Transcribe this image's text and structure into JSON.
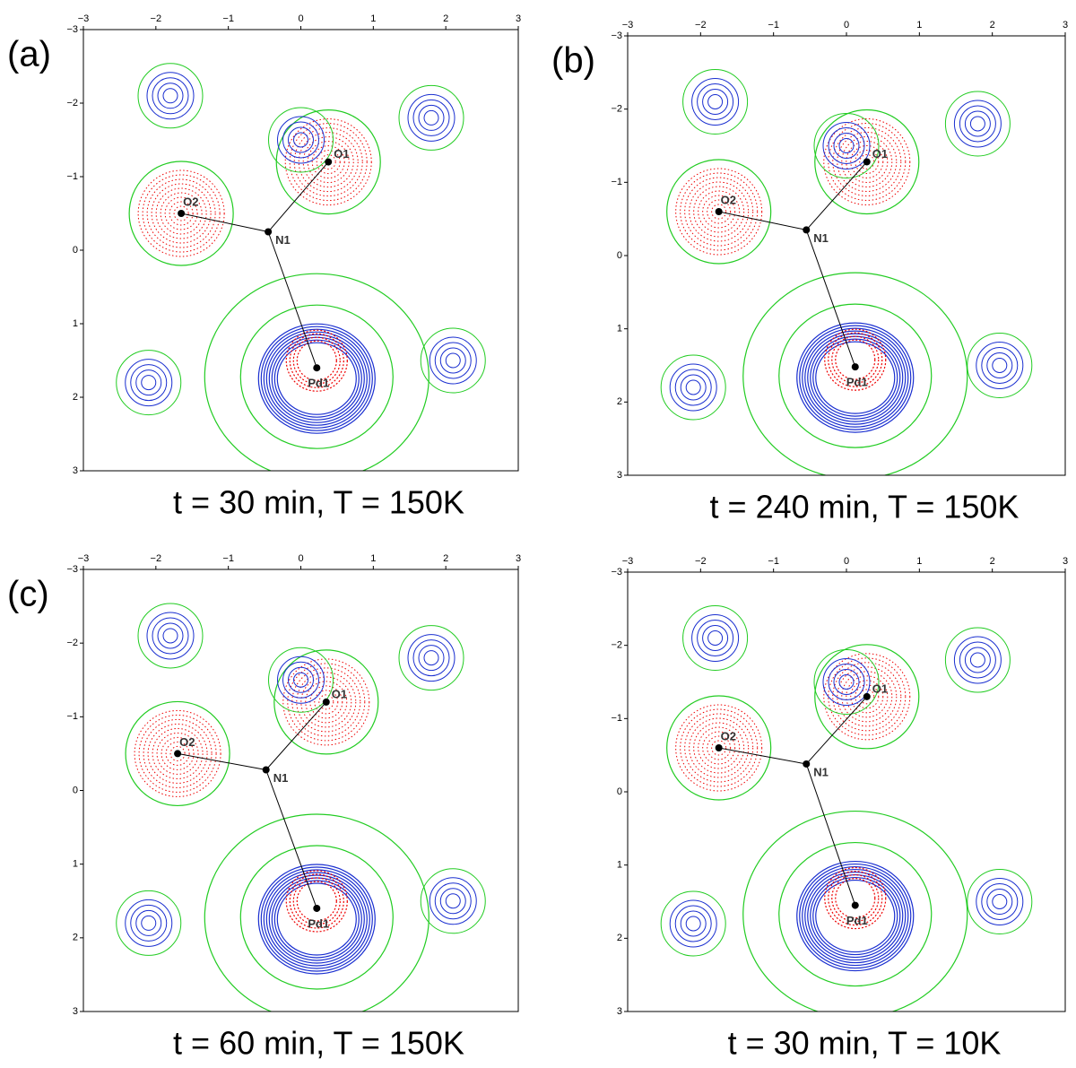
{
  "chart_data": [
    {
      "type": "scatter",
      "panel_label": "(a)",
      "caption": "t = 30 min, T = 150K",
      "labels": [
        "O1",
        "O2",
        "N1",
        "Pd1"
      ],
      "x": [
        0.38,
        -1.65,
        -0.45,
        0.22
      ],
      "y": [
        -1.2,
        -0.5,
        -0.25,
        1.6
      ],
      "xlim": [
        -3,
        3
      ],
      "ylim": [
        -3,
        3
      ],
      "y_inverted": true,
      "xticks": [
        {
          "value": -3,
          "label": "−3"
        },
        {
          "value": -2,
          "label": "−2"
        },
        {
          "value": -1,
          "label": "−1"
        },
        0,
        1,
        2,
        3
      ],
      "yticks": [
        {
          "value": -3,
          "label": "−3"
        },
        {
          "value": -2,
          "label": "−2"
        },
        {
          "value": -1,
          "label": "−1"
        },
        0,
        1,
        2,
        3
      ]
    },
    {
      "type": "scatter",
      "panel_label": "(b)",
      "caption": "t = 240 min, T = 150K",
      "labels": [
        "O1",
        "O2",
        "N1",
        "Pd1"
      ],
      "x": [
        0.28,
        -1.75,
        -0.55,
        0.12
      ],
      "y": [
        -1.28,
        -0.6,
        -0.35,
        1.52
      ],
      "xlim": [
        -3,
        3
      ],
      "ylim": [
        -3,
        3
      ],
      "y_inverted": true,
      "xticks": [
        {
          "value": -3,
          "label": "−3"
        },
        {
          "value": -2,
          "label": "−2"
        },
        {
          "value": -1,
          "label": "−1"
        },
        0,
        1,
        2,
        3
      ],
      "yticks": [
        {
          "value": -3,
          "label": "−3"
        },
        {
          "value": -2,
          "label": "−2"
        },
        {
          "value": -1,
          "label": "−1"
        },
        0,
        1,
        2,
        3
      ]
    },
    {
      "type": "scatter",
      "panel_label": "(c)",
      "caption": "t = 60 min, T = 150K",
      "labels": [
        "O1",
        "O2",
        "N1",
        "Pd1"
      ],
      "x": [
        0.35,
        -1.7,
        -0.48,
        0.22
      ],
      "y": [
        -1.2,
        -0.5,
        -0.28,
        1.6
      ],
      "xlim": [
        -3,
        3
      ],
      "ylim": [
        -3,
        3
      ],
      "y_inverted": true,
      "xticks": [
        {
          "value": -3,
          "label": "−3"
        },
        {
          "value": -2,
          "label": "−2"
        },
        {
          "value": -1,
          "label": "−1"
        },
        0,
        1,
        2,
        3
      ],
      "yticks": [
        {
          "value": -3,
          "label": "−3"
        },
        {
          "value": -2,
          "label": "−2"
        },
        {
          "value": -1,
          "label": "−1"
        },
        0,
        1,
        2,
        3
      ]
    },
    {
      "type": "scatter",
      "panel_label": null,
      "caption": "t = 30 min, T = 10K",
      "labels": [
        "O1",
        "O2",
        "N1",
        "Pd1"
      ],
      "x": [
        0.28,
        -1.75,
        -0.55,
        0.12
      ],
      "y": [
        -1.3,
        -0.6,
        -0.38,
        1.55
      ],
      "xlim": [
        -3,
        3
      ],
      "ylim": [
        -3,
        3
      ],
      "y_inverted": true,
      "xticks": [
        {
          "value": -3,
          "label": "−3"
        },
        {
          "value": -2,
          "label": "−2"
        },
        {
          "value": -1,
          "label": "−1"
        },
        0,
        1,
        2,
        3
      ],
      "yticks": [
        {
          "value": -3,
          "label": "−3"
        },
        {
          "value": -2,
          "label": "−2"
        },
        {
          "value": -1,
          "label": "−1"
        },
        0,
        1,
        2,
        3
      ]
    }
  ]
}
